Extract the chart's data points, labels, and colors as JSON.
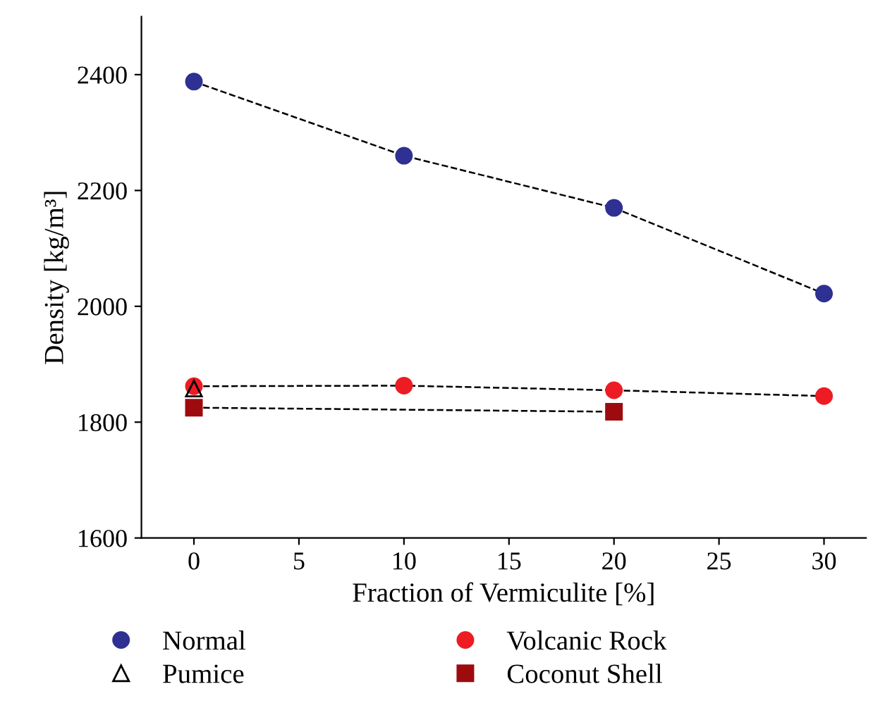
{
  "chart_data": {
    "type": "line",
    "xlabel": "Fraction of Vermiculite [%]",
    "ylabel": "Density [kg/m³]",
    "xlim": [
      -2.5,
      32
    ],
    "xticks": [
      0,
      5,
      10,
      15,
      20,
      25,
      30
    ],
    "ylim": [
      1600,
      2500
    ],
    "yticks": [
      1600,
      1800,
      2000,
      2200,
      2400
    ],
    "grid": false,
    "legend": "bottom",
    "series": [
      {
        "name": "Normal",
        "color": "#2e3192",
        "x": [
          0,
          10,
          20,
          30
        ],
        "values": [
          2388,
          2260,
          2170,
          2022
        ],
        "marker": "circle",
        "line_style": "dashed"
      },
      {
        "name": "Pumice",
        "color": "#000000",
        "x": [
          0
        ],
        "values": [
          1858
        ],
        "marker": "triangle",
        "line_style": "none"
      },
      {
        "name": "Volcanic Rock",
        "color": "#ed1c24",
        "x": [
          0,
          10,
          20,
          30
        ],
        "values": [
          1862,
          1863,
          1855,
          1845
        ],
        "marker": "circle",
        "line_style": "dashed"
      },
      {
        "name": "Coconut Shell",
        "color": "#9e0b0f",
        "x": [
          0,
          20
        ],
        "values": [
          1825,
          1818
        ],
        "marker": "square",
        "line_style": "dashed"
      }
    ]
  }
}
